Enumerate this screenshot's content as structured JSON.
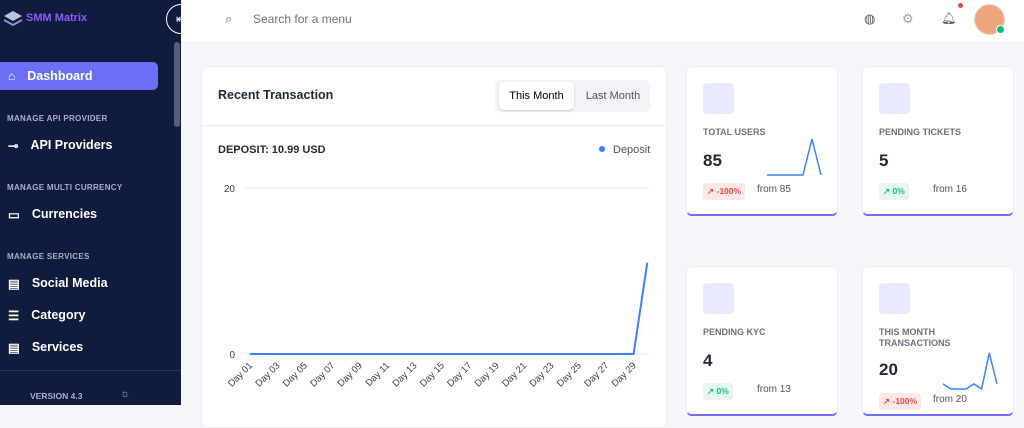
{
  "sidebar": {
    "brand": "SMM Matrix",
    "items": [
      {
        "label": "Dashboard"
      },
      {
        "section": "MANAGE API PROVIDER"
      },
      {
        "label": "API Providers"
      },
      {
        "section": "MANAGE MULTI CURRENCY"
      },
      {
        "label": "Currencies"
      },
      {
        "section": "MANAGE SERVICES"
      },
      {
        "label": "Social Media"
      },
      {
        "label": "Category"
      },
      {
        "label": "Services"
      }
    ],
    "version": "VERSION 4.3"
  },
  "header": {
    "search_placeholder": "Search for a menu"
  },
  "transactions": {
    "title": "Recent Transaction",
    "tabs": [
      "This Month",
      "Last Month"
    ],
    "deposit": "DEPOSIT: 10.99 USD"
  },
  "chart_data": {
    "type": "line",
    "categories": [
      "Day 01",
      null,
      "Day 03",
      null,
      "Day 05",
      null,
      "Day 07",
      null,
      "Day 09",
      null,
      "Day 11",
      null,
      "Day 13",
      null,
      "Day 15",
      null,
      "Day 17",
      null,
      "Day 19",
      null,
      "Day 21",
      null,
      "Day 23",
      null,
      "Day 25",
      null,
      "Day 27",
      null,
      "Day 29",
      null
    ],
    "series": [
      {
        "name": "Deposit",
        "color": "#3b82f6",
        "values": [
          0,
          0,
          0,
          0,
          0,
          0,
          0,
          0,
          0,
          0,
          0,
          0,
          0,
          0,
          0,
          0,
          0,
          0,
          0,
          0,
          0,
          0,
          0,
          0,
          0,
          0,
          0,
          0,
          0,
          10.99
        ]
      }
    ],
    "ylim": [
      0,
      20
    ],
    "yticks": [
      0,
      20
    ],
    "grid": true
  },
  "stats": [
    {
      "label": "TOTAL USERS",
      "value": "85",
      "change": "-100%",
      "from": "from 85",
      "sparkline": [
        0,
        0,
        0,
        0,
        0,
        1,
        0
      ]
    },
    {
      "label": "PENDING TICKETS",
      "value": "5",
      "change": "0%",
      "from": "from 16"
    },
    {
      "label": "PENDING KYC",
      "value": "4",
      "change": "0%",
      "from": "from 13"
    },
    {
      "label": "THIS MONTH TRANSACTIONS",
      "value": "20",
      "change": "-100%",
      "from": "from 20",
      "sparkline": [
        2,
        1,
        1,
        1,
        2,
        1,
        8,
        2
      ]
    }
  ]
}
